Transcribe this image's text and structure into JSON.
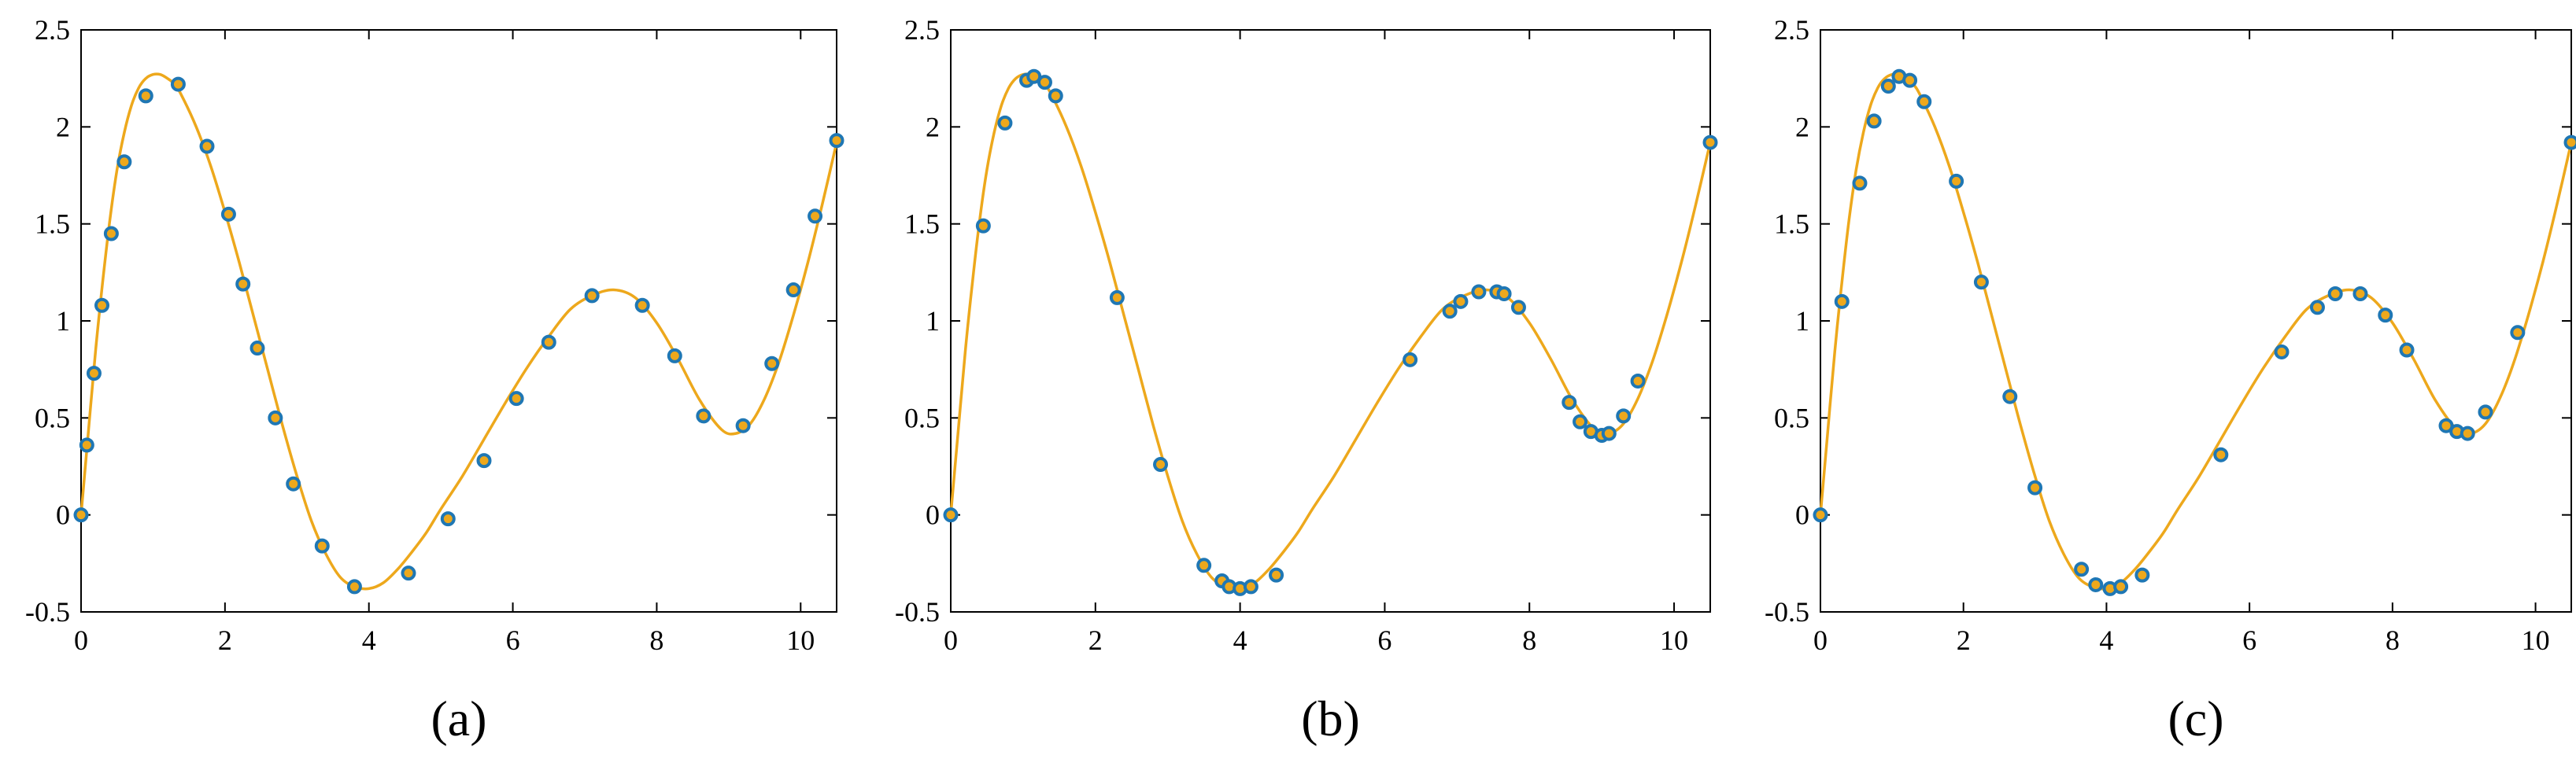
{
  "colors": {
    "curve": "#EDA81C",
    "marker": "#1F77B4",
    "axis": "#000000",
    "background": "#FFFFFF"
  },
  "chart_data": [
    {
      "type": "line",
      "panel_label": "(a)",
      "xlim": [
        0,
        10.5
      ],
      "ylim": [
        -0.5,
        2.5
      ],
      "xticks": [
        0,
        2,
        4,
        6,
        8,
        10
      ],
      "xtick_labels": [
        "0",
        "2",
        "4",
        "6",
        "8",
        "10"
      ],
      "yticks": [
        -0.5,
        0,
        0.5,
        1,
        1.5,
        2,
        2.5
      ],
      "ytick_labels": [
        "-0.5",
        "0",
        "0.5",
        "1",
        "1.5",
        "2",
        "2.5"
      ],
      "grid": false,
      "curve": {
        "x": [
          0,
          0.1,
          0.2,
          0.3,
          0.4,
          0.5,
          0.6,
          0.7,
          0.8,
          0.9,
          1.0,
          1.1,
          1.2,
          1.3,
          1.4,
          1.6,
          1.8,
          2.0,
          2.2,
          2.4,
          2.6,
          2.8,
          3.0,
          3.2,
          3.4,
          3.6,
          3.8,
          4.0,
          4.2,
          4.4,
          4.6,
          4.8,
          5.0,
          5.3,
          5.6,
          5.9,
          6.2,
          6.5,
          6.8,
          7.1,
          7.4,
          7.7,
          8.0,
          8.3,
          8.6,
          8.9,
          9.1,
          9.3,
          9.5,
          9.7,
          9.9,
          10.1,
          10.3,
          10.5
        ],
        "y": [
          0,
          0.42,
          0.84,
          1.2,
          1.52,
          1.78,
          1.97,
          2.11,
          2.2,
          2.25,
          2.27,
          2.27,
          2.25,
          2.22,
          2.16,
          2.0,
          1.8,
          1.56,
          1.3,
          1.02,
          0.74,
          0.46,
          0.2,
          -0.03,
          -0.2,
          -0.32,
          -0.37,
          -0.38,
          -0.35,
          -0.28,
          -0.19,
          -0.09,
          0.03,
          0.2,
          0.39,
          0.58,
          0.76,
          0.92,
          1.06,
          1.13,
          1.16,
          1.12,
          0.99,
          0.8,
          0.59,
          0.44,
          0.42,
          0.47,
          0.6,
          0.79,
          1.03,
          1.3,
          1.6,
          1.92
        ]
      },
      "points": {
        "x": [
          0,
          0.08,
          0.18,
          0.29,
          0.42,
          0.6,
          0.9,
          1.35,
          1.75,
          2.05,
          2.25,
          2.45,
          2.7,
          2.95,
          3.35,
          3.8,
          4.55,
          5.1,
          5.6,
          6.05,
          6.5,
          7.1,
          7.8,
          8.25,
          8.65,
          9.2,
          9.6,
          9.9,
          10.2,
          10.5
        ],
        "y": [
          0,
          0.36,
          0.73,
          1.08,
          1.45,
          1.82,
          2.16,
          2.22,
          1.9,
          1.55,
          1.19,
          0.86,
          0.5,
          0.16,
          -0.16,
          -0.37,
          -0.3,
          -0.02,
          0.28,
          0.6,
          0.89,
          1.13,
          1.08,
          0.82,
          0.51,
          0.46,
          0.78,
          1.16,
          1.54,
          1.93
        ]
      }
    },
    {
      "type": "line",
      "panel_label": "(b)",
      "xlim": [
        0,
        10.5
      ],
      "ylim": [
        -0.5,
        2.5
      ],
      "xticks": [
        0,
        2,
        4,
        6,
        8,
        10
      ],
      "xtick_labels": [
        "0",
        "2",
        "4",
        "6",
        "8",
        "10"
      ],
      "yticks": [
        -0.5,
        0,
        0.5,
        1,
        1.5,
        2,
        2.5
      ],
      "ytick_labels": [
        "-0.5",
        "0",
        "0.5",
        "1",
        "1.5",
        "2",
        "2.5"
      ],
      "grid": false,
      "curve": {
        "x": [
          0,
          0.1,
          0.2,
          0.3,
          0.4,
          0.5,
          0.6,
          0.7,
          0.8,
          0.9,
          1.0,
          1.1,
          1.2,
          1.3,
          1.4,
          1.6,
          1.8,
          2.0,
          2.2,
          2.4,
          2.6,
          2.8,
          3.0,
          3.2,
          3.4,
          3.6,
          3.8,
          4.0,
          4.2,
          4.4,
          4.6,
          4.8,
          5.0,
          5.3,
          5.6,
          5.9,
          6.2,
          6.5,
          6.8,
          7.1,
          7.4,
          7.7,
          8.0,
          8.3,
          8.6,
          8.9,
          9.1,
          9.3,
          9.5,
          9.7,
          9.9,
          10.1,
          10.3,
          10.5
        ],
        "y": [
          0,
          0.42,
          0.84,
          1.2,
          1.52,
          1.78,
          1.97,
          2.11,
          2.2,
          2.25,
          2.27,
          2.27,
          2.25,
          2.22,
          2.16,
          2.0,
          1.8,
          1.56,
          1.3,
          1.02,
          0.74,
          0.46,
          0.2,
          -0.03,
          -0.2,
          -0.32,
          -0.37,
          -0.38,
          -0.35,
          -0.28,
          -0.19,
          -0.09,
          0.03,
          0.2,
          0.39,
          0.58,
          0.76,
          0.92,
          1.06,
          1.13,
          1.16,
          1.12,
          0.99,
          0.8,
          0.59,
          0.44,
          0.42,
          0.47,
          0.6,
          0.79,
          1.03,
          1.3,
          1.6,
          1.92
        ]
      },
      "points": {
        "x": [
          0,
          0.45,
          0.75,
          1.05,
          1.15,
          1.3,
          1.45,
          2.3,
          2.9,
          3.5,
          3.75,
          3.85,
          4.0,
          4.15,
          4.5,
          6.35,
          6.9,
          7.05,
          7.3,
          7.55,
          7.65,
          7.85,
          8.55,
          8.7,
          8.85,
          9.0,
          9.1,
          9.3,
          9.5,
          10.5
        ],
        "y": [
          0,
          1.49,
          2.02,
          2.24,
          2.26,
          2.23,
          2.16,
          1.12,
          0.26,
          -0.26,
          -0.34,
          -0.37,
          -0.38,
          -0.37,
          -0.31,
          0.8,
          1.05,
          1.1,
          1.15,
          1.15,
          1.14,
          1.07,
          0.58,
          0.48,
          0.43,
          0.41,
          0.42,
          0.51,
          0.69,
          1.92
        ]
      }
    },
    {
      "type": "line",
      "panel_label": "(c)",
      "xlim": [
        0,
        10.5
      ],
      "ylim": [
        -0.5,
        2.5
      ],
      "xticks": [
        0,
        2,
        4,
        6,
        8,
        10
      ],
      "xtick_labels": [
        "0",
        "2",
        "4",
        "6",
        "8",
        "10"
      ],
      "yticks": [
        -0.5,
        0,
        0.5,
        1,
        1.5,
        2,
        2.5
      ],
      "ytick_labels": [
        "-0.5",
        "0",
        "0.5",
        "1",
        "1.5",
        "2",
        "2.5"
      ],
      "grid": false,
      "curve": {
        "x": [
          0,
          0.1,
          0.2,
          0.3,
          0.4,
          0.5,
          0.6,
          0.7,
          0.8,
          0.9,
          1.0,
          1.1,
          1.2,
          1.3,
          1.4,
          1.6,
          1.8,
          2.0,
          2.2,
          2.4,
          2.6,
          2.8,
          3.0,
          3.2,
          3.4,
          3.6,
          3.8,
          4.0,
          4.2,
          4.4,
          4.6,
          4.8,
          5.0,
          5.3,
          5.6,
          5.9,
          6.2,
          6.5,
          6.8,
          7.1,
          7.4,
          7.7,
          8.0,
          8.3,
          8.6,
          8.9,
          9.1,
          9.3,
          9.5,
          9.7,
          9.9,
          10.1,
          10.3,
          10.5
        ],
        "y": [
          0,
          0.42,
          0.84,
          1.2,
          1.52,
          1.78,
          1.97,
          2.11,
          2.2,
          2.25,
          2.27,
          2.27,
          2.25,
          2.22,
          2.16,
          2.0,
          1.8,
          1.56,
          1.3,
          1.02,
          0.74,
          0.46,
          0.2,
          -0.03,
          -0.2,
          -0.32,
          -0.37,
          -0.38,
          -0.35,
          -0.28,
          -0.19,
          -0.09,
          0.03,
          0.2,
          0.39,
          0.58,
          0.76,
          0.92,
          1.06,
          1.13,
          1.16,
          1.12,
          0.99,
          0.8,
          0.59,
          0.44,
          0.42,
          0.47,
          0.6,
          0.79,
          1.03,
          1.3,
          1.6,
          1.92
        ]
      },
      "points": {
        "x": [
          0,
          0.3,
          0.55,
          0.75,
          0.95,
          1.1,
          1.25,
          1.45,
          1.9,
          2.25,
          2.65,
          3.0,
          3.65,
          3.85,
          4.05,
          4.2,
          4.5,
          5.6,
          6.45,
          6.95,
          7.2,
          7.55,
          7.9,
          8.2,
          8.75,
          8.9,
          9.05,
          9.3,
          9.75,
          10.5
        ],
        "y": [
          0,
          1.1,
          1.71,
          2.03,
          2.21,
          2.26,
          2.24,
          2.13,
          1.72,
          1.2,
          0.61,
          0.14,
          -0.28,
          -0.36,
          -0.38,
          -0.37,
          -0.31,
          0.31,
          0.84,
          1.07,
          1.14,
          1.14,
          1.03,
          0.85,
          0.46,
          0.43,
          0.42,
          0.53,
          0.94,
          1.92
        ]
      }
    }
  ]
}
